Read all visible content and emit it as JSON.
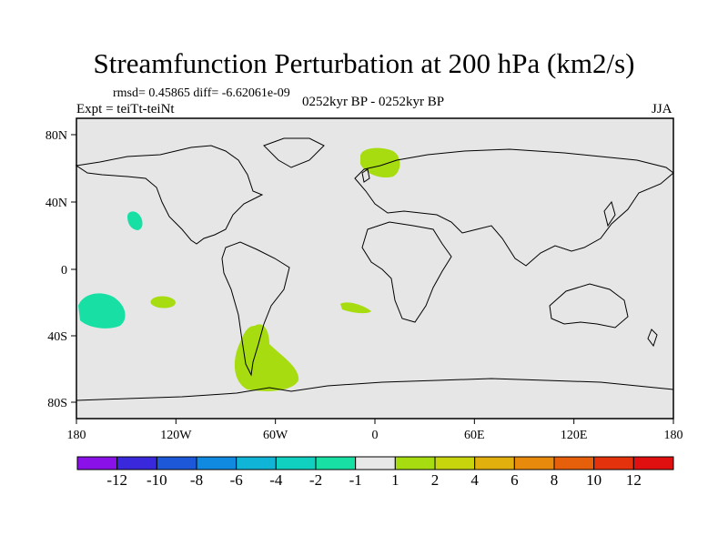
{
  "title": "Streamfunction Perturbation at 200 hPa (km2/s)",
  "stats": {
    "rmsd_label": "rmsd=",
    "rmsd": "0.45865",
    "diff_label": "diff=",
    "diff": "-6.62061e-09"
  },
  "experiment": "Expt = teiTt-teiNt",
  "period": "0252kyr BP - 0252kyr BP",
  "season": "JJA",
  "map": {
    "background_color": "#e6e6e6",
    "lat_ticks": [
      "80N",
      "40N",
      "0",
      "40S",
      "80S"
    ],
    "lon_ticks": [
      "180",
      "120W",
      "60W",
      "0",
      "60E",
      "120E",
      "180"
    ],
    "anomaly_regions": [
      {
        "name": "north-atlantic-scandinavia",
        "level": "1 to 2"
      },
      {
        "name": "north-pacific",
        "level": "-2 to -1"
      },
      {
        "name": "south-pacific-west",
        "level": "-2 to -1"
      },
      {
        "name": "south-pacific-east",
        "level": "1 to 2"
      },
      {
        "name": "south-atlantic",
        "level": "1 to 2"
      },
      {
        "name": "southern-south-america",
        "level": "1 to 2"
      }
    ]
  },
  "colorbar": {
    "labels": [
      "-12",
      "-10",
      "-8",
      "-6",
      "-4",
      "-2",
      "-1",
      "1",
      "2",
      "4",
      "6",
      "8",
      "10",
      "12"
    ],
    "colors": [
      "#8a12e8",
      "#3a28dc",
      "#1d58d8",
      "#0f8ae0",
      "#10b4d6",
      "#10d0c0",
      "#18e0a4",
      "#e8e8e8",
      "#a6dc10",
      "#c8d40c",
      "#e2b00c",
      "#e88a0c",
      "#e6600c",
      "#e4320c",
      "#e01010"
    ]
  }
}
